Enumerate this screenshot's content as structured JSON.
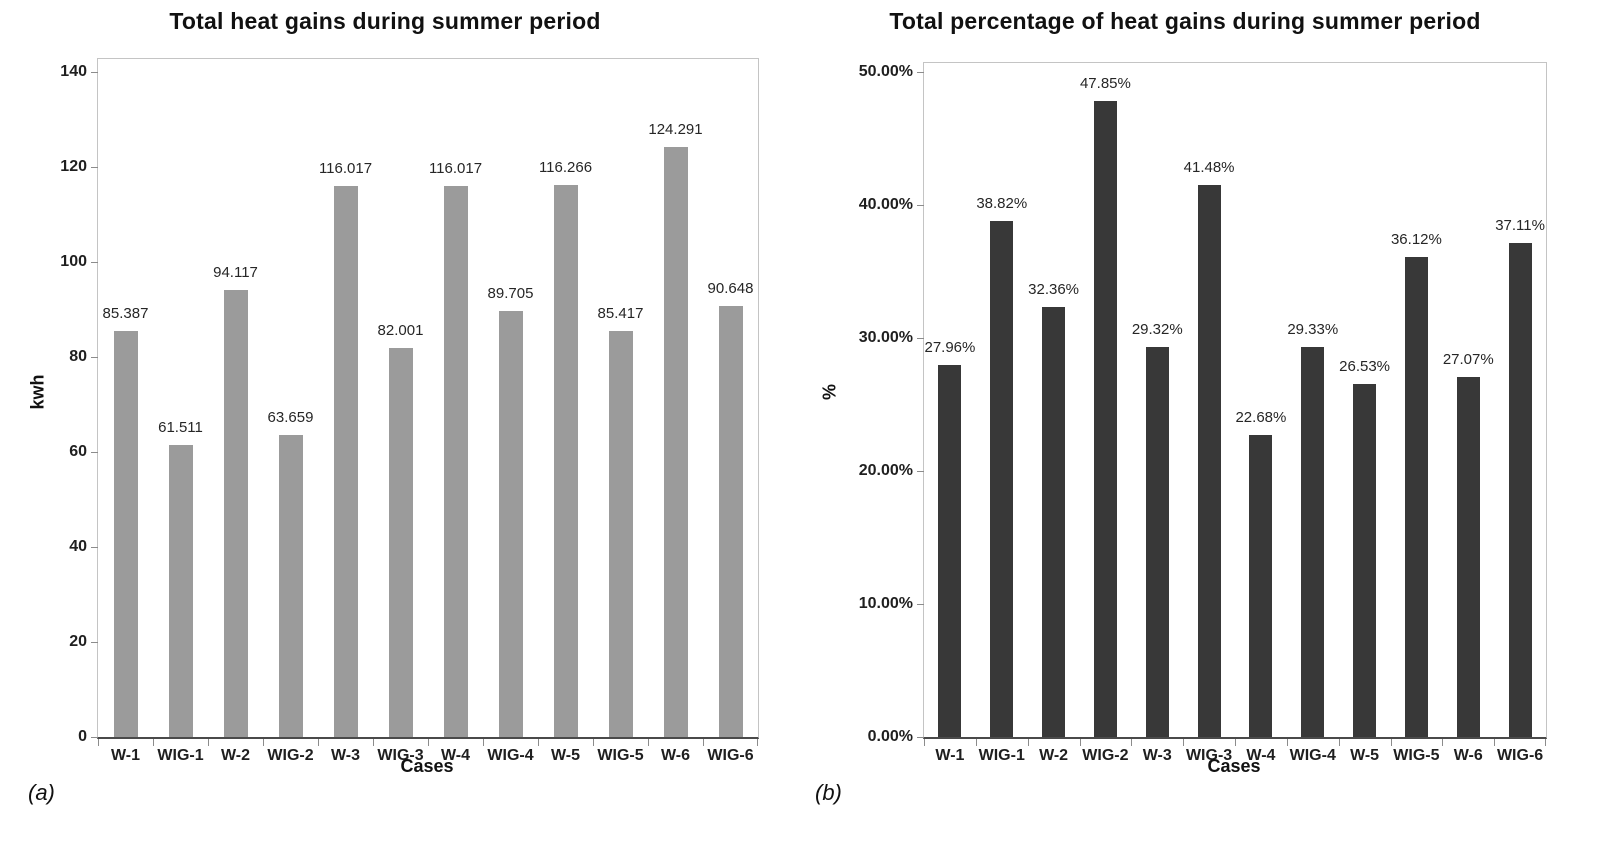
{
  "page_background": "#ffffff",
  "captions": {
    "a": "(a)",
    "b": "(b)"
  },
  "chart_data": [
    {
      "type": "bar",
      "title": "Total heat gains during summer period",
      "xlabel": "Cases",
      "ylabel": "kwh",
      "categories": [
        "W-1",
        "WIG-1",
        "W-2",
        "WIG-2",
        "W-3",
        "WIG-3",
        "W-4",
        "WIG-4",
        "W-5",
        "WIG-5",
        "W-6",
        "WIG-6"
      ],
      "values": [
        85.387,
        61.511,
        94.117,
        63.659,
        116.017,
        82.001,
        116.017,
        89.705,
        116.266,
        85.417,
        124.291,
        90.648
      ],
      "data_labels": [
        "85.387",
        "61.511",
        "94.117",
        "63.659",
        "116.017",
        "82.001",
        "116.017",
        "89.705",
        "116.266",
        "85.417",
        "124.291",
        "90.648"
      ],
      "ylim": [
        0,
        140
      ],
      "ytick_labels": [
        "0",
        "20",
        "40",
        "60",
        "80",
        "100",
        "120",
        "140"
      ],
      "bar_color": "#9b9b9b",
      "grid": false,
      "legend": "none"
    },
    {
      "type": "bar",
      "title": "Total percentage of heat gains during summer period",
      "xlabel": "Cases",
      "ylabel": "%",
      "categories": [
        "W-1",
        "WIG-1",
        "W-2",
        "WIG-2",
        "W-3",
        "WIG-3",
        "W-4",
        "WIG-4",
        "W-5",
        "WIG-5",
        "W-6",
        "WIG-6"
      ],
      "values": [
        27.96,
        38.82,
        32.36,
        47.85,
        29.32,
        41.48,
        22.68,
        29.33,
        26.53,
        36.12,
        27.07,
        37.11
      ],
      "data_labels": [
        "27.96%",
        "38.82%",
        "32.36%",
        "47.85%",
        "29.32%",
        "41.48%",
        "22.68%",
        "29.33%",
        "26.53%",
        "36.12%",
        "27.07%",
        "37.11%"
      ],
      "ylim": [
        0,
        50
      ],
      "ytick_labels": [
        "0.00%",
        "10.00%",
        "20.00%",
        "30.00%",
        "40.00%",
        "50.00%"
      ],
      "bar_color": "#383838",
      "grid": false,
      "legend": "none"
    }
  ]
}
